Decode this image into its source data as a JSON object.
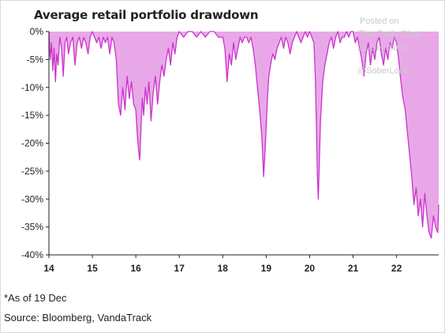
{
  "watermark": {
    "posted": "Posted on",
    "brand": "The Daily Shot",
    "date": "22-Dec-2022",
    "handle": "@SoberLook"
  },
  "footnote": "*As of 19 Dec",
  "source": "Source: Bloomberg, VandaTrack",
  "colors": {
    "fill": "#e8a8e8",
    "line": "#cc33cc",
    "axis": "#222222"
  },
  "chart_data": {
    "type": "area",
    "title": "Average retail portfolio drawdown",
    "xlabel": "",
    "ylabel": "",
    "xlim": [
      2014.0,
      2022.97
    ],
    "ylim": [
      -40,
      0
    ],
    "x_ticks": [
      {
        "value": 2014,
        "label": "14"
      },
      {
        "value": 2015,
        "label": "15"
      },
      {
        "value": 2016,
        "label": "16"
      },
      {
        "value": 2017,
        "label": "17"
      },
      {
        "value": 2018,
        "label": "18"
      },
      {
        "value": 2019,
        "label": "19"
      },
      {
        "value": 2020,
        "label": "20"
      },
      {
        "value": 2021,
        "label": "21"
      },
      {
        "value": 2022,
        "label": "22"
      }
    ],
    "y_ticks": [
      {
        "value": 0,
        "label": "0%"
      },
      {
        "value": -5,
        "label": "-5%"
      },
      {
        "value": -10,
        "label": "-10%"
      },
      {
        "value": -15,
        "label": "-15%"
      },
      {
        "value": -20,
        "label": "-20%"
      },
      {
        "value": -25,
        "label": "-25%"
      },
      {
        "value": -30,
        "label": "-30%"
      },
      {
        "value": -35,
        "label": "-35%"
      },
      {
        "value": -40,
        "label": "-40%"
      }
    ],
    "grid": false,
    "legend": "none",
    "series": [
      {
        "x": [
          2014.0,
          2014.03,
          2014.06,
          2014.09,
          2014.12,
          2014.15,
          2014.18,
          2014.21,
          2014.25,
          2014.29,
          2014.33,
          2014.37,
          2014.41,
          2014.45,
          2014.5,
          2014.55,
          2014.6,
          2014.65,
          2014.7,
          2014.75,
          2014.8,
          2014.85,
          2014.9,
          2014.95,
          2015.0,
          2015.05,
          2015.1,
          2015.15,
          2015.2,
          2015.25,
          2015.3,
          2015.35,
          2015.4,
          2015.45,
          2015.5,
          2015.55,
          2015.6,
          2015.65,
          2015.7,
          2015.75,
          2015.8,
          2015.85,
          2015.9,
          2015.95,
          2016.0,
          2016.03,
          2016.06,
          2016.09,
          2016.12,
          2016.15,
          2016.18,
          2016.22,
          2016.26,
          2016.3,
          2016.35,
          2016.4,
          2016.45,
          2016.5,
          2016.55,
          2016.6,
          2016.65,
          2016.7,
          2016.75,
          2016.8,
          2016.85,
          2016.9,
          2016.95,
          2017.0,
          2017.1,
          2017.2,
          2017.3,
          2017.4,
          2017.5,
          2017.6,
          2017.7,
          2017.8,
          2017.9,
          2018.0,
          2018.05,
          2018.1,
          2018.15,
          2018.2,
          2018.25,
          2018.3,
          2018.35,
          2018.4,
          2018.45,
          2018.5,
          2018.55,
          2018.6,
          2018.65,
          2018.7,
          2018.75,
          2018.8,
          2018.85,
          2018.9,
          2018.94,
          2018.97,
          2019.0,
          2019.03,
          2019.06,
          2019.1,
          2019.15,
          2019.2,
          2019.25,
          2019.3,
          2019.35,
          2019.4,
          2019.45,
          2019.5,
          2019.55,
          2019.6,
          2019.65,
          2019.7,
          2019.75,
          2019.8,
          2019.85,
          2019.9,
          2019.95,
          2020.0,
          2020.05,
          2020.1,
          2020.13,
          2020.16,
          2020.18,
          2020.2,
          2020.22,
          2020.25,
          2020.3,
          2020.35,
          2020.4,
          2020.45,
          2020.5,
          2020.55,
          2020.6,
          2020.65,
          2020.7,
          2020.75,
          2020.8,
          2020.85,
          2020.9,
          2020.95,
          2021.0,
          2021.05,
          2021.1,
          2021.15,
          2021.2,
          2021.25,
          2021.3,
          2021.35,
          2021.4,
          2021.45,
          2021.5,
          2021.55,
          2021.6,
          2021.65,
          2021.7,
          2021.75,
          2021.8,
          2021.85,
          2021.9,
          2021.95,
          2022.0,
          2022.05,
          2022.1,
          2022.15,
          2022.2,
          2022.25,
          2022.3,
          2022.35,
          2022.4,
          2022.45,
          2022.5,
          2022.55,
          2022.6,
          2022.65,
          2022.7,
          2022.75,
          2022.8,
          2022.85,
          2022.9,
          2022.95,
          2022.97
        ],
        "y": [
          0,
          -5,
          -2,
          -7,
          -3,
          -9,
          -4,
          -6,
          -1,
          -3,
          -8,
          -2,
          -1,
          -4,
          -2,
          -1,
          -6,
          -2,
          -1,
          -3,
          -1,
          -2,
          -4,
          -1,
          0,
          -1,
          -2,
          -1,
          -3,
          -1,
          -2,
          -1,
          -4,
          -1,
          -2,
          -5,
          -13,
          -15,
          -10,
          -14,
          -8,
          -12,
          -9,
          -13,
          -14,
          -18,
          -21,
          -23,
          -17,
          -12,
          -15,
          -10,
          -13,
          -9,
          -16,
          -11,
          -8,
          -13,
          -9,
          -6,
          -8,
          -5,
          -3,
          -6,
          -2,
          -4,
          -1,
          0,
          -1,
          0,
          0,
          -1,
          0,
          -1,
          0,
          0,
          -1,
          -1,
          -3,
          -9,
          -4,
          -6,
          -2,
          -5,
          -3,
          -1,
          -2,
          -1,
          -1,
          -2,
          -1,
          -3,
          -6,
          -10,
          -14,
          -19,
          -26,
          -22,
          -17,
          -12,
          -8,
          -6,
          -4,
          -5,
          -3,
          -2,
          -1,
          -3,
          -1,
          -2,
          -4,
          -2,
          -1,
          0,
          -1,
          -2,
          -1,
          0,
          -1,
          0,
          -1,
          -2,
          -8,
          -18,
          -26,
          -30,
          -24,
          -16,
          -9,
          -6,
          -4,
          -2,
          -1,
          -3,
          -1,
          0,
          -2,
          -1,
          -1,
          0,
          -1,
          0,
          0,
          -2,
          -1,
          -3,
          -5,
          -8,
          -4,
          -2,
          -6,
          -3,
          -5,
          -2,
          -1,
          -4,
          -6,
          -3,
          -5,
          -2,
          -3,
          -1,
          -2,
          -5,
          -9,
          -12,
          -14,
          -18,
          -22,
          -26,
          -31,
          -28,
          -33,
          -30,
          -35,
          -29,
          -33,
          -36,
          -37,
          -33,
          -35,
          -36,
          -31
        ]
      }
    ]
  }
}
